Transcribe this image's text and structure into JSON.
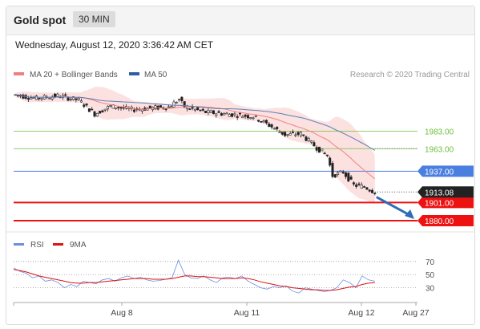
{
  "header": {
    "title": "Gold spot",
    "timeframe": "30 MIN"
  },
  "datetime": "Wednesday, August 12, 2020 3:36:42 AM CET",
  "legend": {
    "ma_bb": "MA 20 + Bollinger Bands",
    "ma50": "MA 50"
  },
  "copyright": "Research © 2020 Trading Central",
  "colors": {
    "candle": "#222222",
    "bb_fill": "#f9c8c8",
    "ma20": "#f08080",
    "ma50": "#5b7fb5",
    "green": "#6cbf3a",
    "blue": "#4a7fe0",
    "red": "#ee1111",
    "rsi": "#6a8fe0",
    "rsi_ma": "#dd1111",
    "arrow": "#2e6db4"
  },
  "chart_data": [
    {
      "type": "candlestick",
      "ylim": [
        1868,
        2040
      ],
      "x_ticks": [
        "Aug 8",
        "Aug 11",
        "Aug 12",
        "Aug 27"
      ],
      "levels": [
        {
          "value": 1983.0,
          "label": "1983.00",
          "kind": "resistance-2"
        },
        {
          "value": 1963.0,
          "label": "1963.00",
          "kind": "resistance-1"
        },
        {
          "value": 1937.0,
          "label": "1937.00",
          "kind": "pivot"
        },
        {
          "value": 1901.0,
          "label": "1901.00",
          "kind": "support-1"
        },
        {
          "value": 1880.0,
          "label": "1880.00",
          "kind": "support-2"
        }
      ],
      "last_price": {
        "value": 1913.08,
        "label": "1913.08"
      },
      "close_path": [
        [
          0,
          2025
        ],
        [
          8,
          2021
        ],
        [
          16,
          2024
        ],
        [
          24,
          2019
        ],
        [
          30,
          2003
        ],
        [
          36,
          2012
        ],
        [
          44,
          2008
        ],
        [
          52,
          2010
        ],
        [
          58,
          2011
        ],
        [
          62,
          2020
        ],
        [
          64,
          2011
        ],
        [
          72,
          2005
        ],
        [
          80,
          2003
        ],
        [
          90,
          2000
        ],
        [
          96,
          1990
        ],
        [
          102,
          1979
        ],
        [
          108,
          1980
        ],
        [
          114,
          1964
        ],
        [
          118,
          1955
        ],
        [
          120,
          1932
        ],
        [
          124,
          1936
        ],
        [
          128,
          1921
        ],
        [
          132,
          1919
        ],
        [
          136,
          1913
        ]
      ],
      "forecast_target": 1880.0
    },
    {
      "type": "line",
      "ylim": [
        10,
        82
      ],
      "levels": [
        {
          "value": 70,
          "label": "70"
        },
        {
          "value": 50,
          "label": "50"
        },
        {
          "value": 30,
          "label": "30"
        }
      ],
      "series": [
        {
          "name": "RSI",
          "values": [
            60,
            55,
            52,
            45,
            48,
            40,
            42,
            38,
            30,
            35,
            32,
            40,
            38,
            36,
            42,
            44,
            40,
            45,
            48,
            44,
            46,
            42,
            40,
            41,
            43,
            45,
            72,
            50,
            45,
            44,
            48,
            42,
            38,
            45,
            46,
            44,
            48,
            40,
            35,
            30,
            28,
            32,
            30,
            33,
            25,
            22,
            30,
            28,
            26,
            24,
            26,
            30,
            42,
            38,
            30,
            48,
            42,
            40
          ]
        },
        {
          "name": "9MA",
          "values": [
            58,
            56,
            54,
            51,
            48,
            46,
            44,
            42,
            40,
            38,
            37,
            37,
            38,
            38,
            39,
            40,
            41,
            42,
            43,
            44,
            44,
            44,
            43,
            43,
            43,
            44,
            46,
            48,
            48,
            47,
            47,
            46,
            45,
            44,
            44,
            44,
            45,
            44,
            42,
            39,
            37,
            35,
            33,
            32,
            30,
            29,
            28,
            27,
            27,
            26,
            26,
            27,
            29,
            31,
            32,
            35,
            37,
            38
          ]
        }
      ]
    }
  ]
}
